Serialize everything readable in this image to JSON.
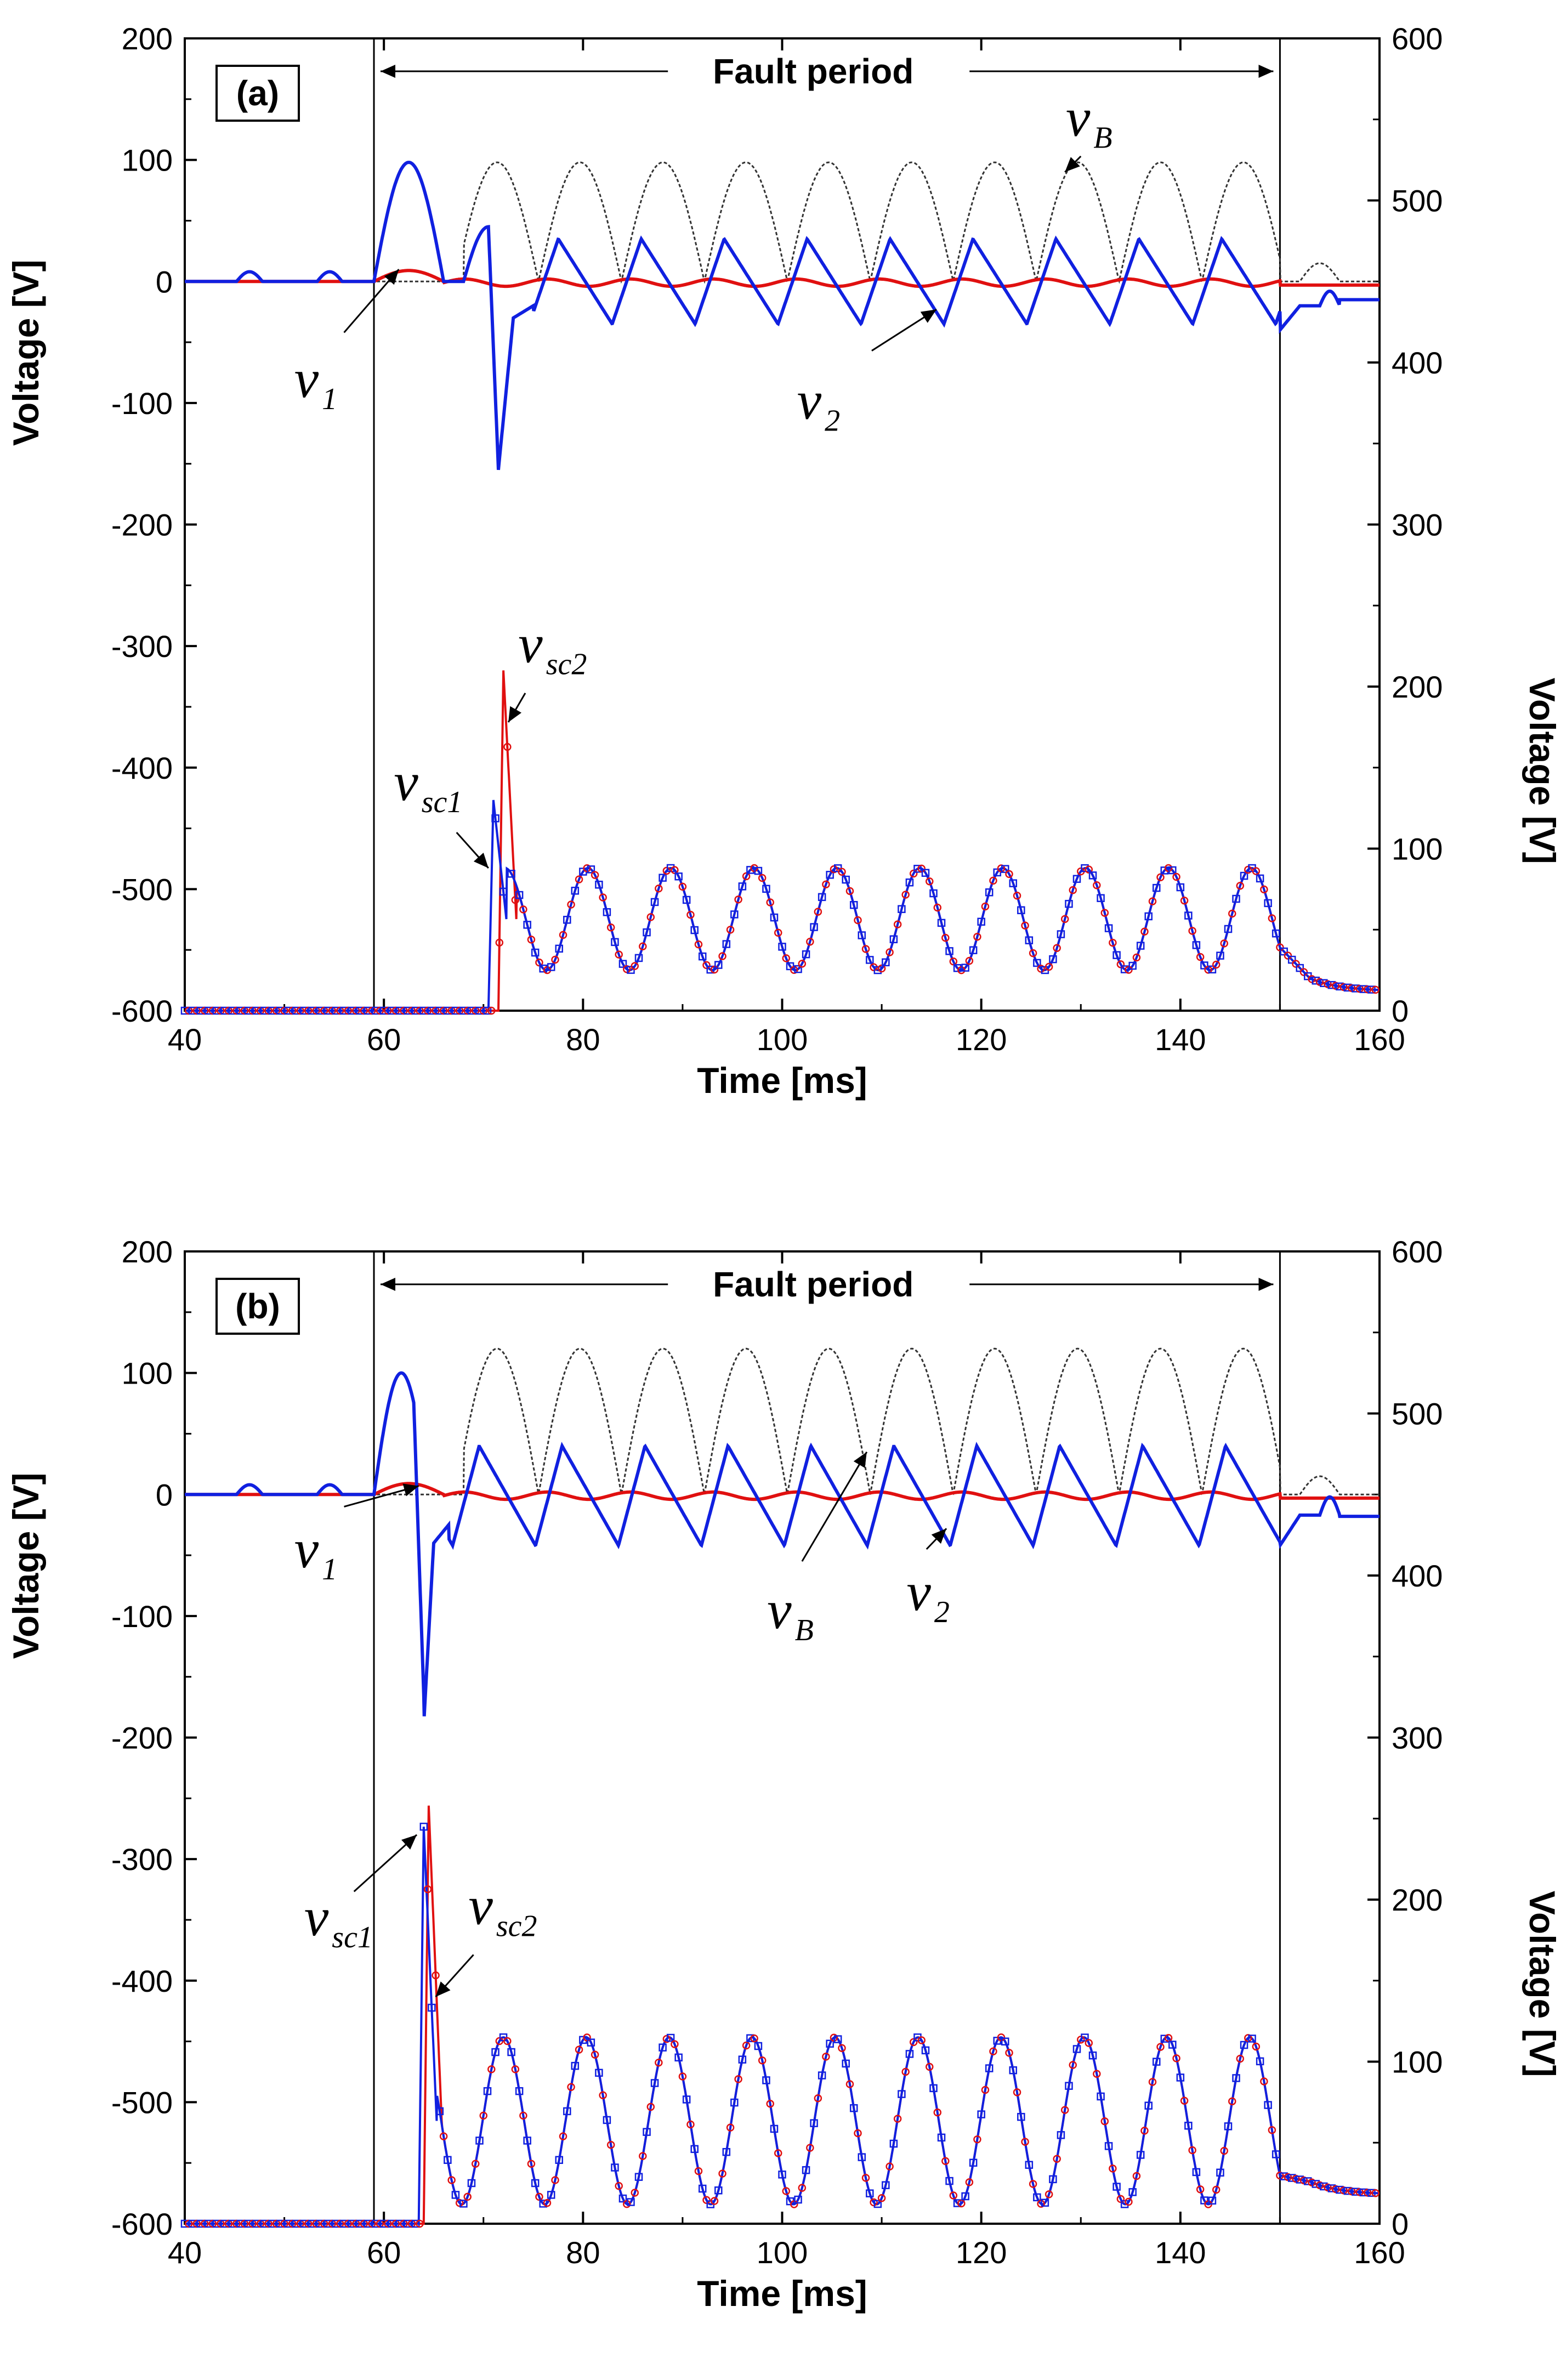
{
  "chart_data": [
    {
      "type": "line",
      "panel": "(a)",
      "xlabel": "Time [ms]",
      "ylabel_left": "Voltage [V]",
      "ylabel_right": "Voltage [V]",
      "xlim": [
        40,
        160
      ],
      "ylim_left": [
        -600,
        200
      ],
      "ylim_right": [
        0,
        600
      ],
      "xticks": [
        "40",
        "60",
        "80",
        "100",
        "120",
        "140",
        "160"
      ],
      "yticks_left": [
        "200",
        "100",
        "0",
        "-100",
        "-200",
        "-300",
        "-400",
        "-500",
        "-600"
      ],
      "yticks_right": [
        "600",
        "500",
        "400",
        "300",
        "200",
        "100",
        "0"
      ],
      "fault_period": {
        "label": "Fault period",
        "start_ms": 59,
        "end_ms": 150
      },
      "series": [
        {
          "name": "vB",
          "axis": "left",
          "color": "#333333",
          "style": "dotted",
          "description": "rectified sinusoid, peaks ~98 V, period ~8.3 ms"
        },
        {
          "name": "v1",
          "axis": "left",
          "color": "#e01010",
          "description": "near zero, small ripple ~±5 V"
        },
        {
          "name": "v2",
          "axis": "left",
          "color": "#1020e0",
          "description": "peak 98 V at 62 ms, dip to -155 V at 71.5 ms, then sawtooth ~+35/-35 V"
        },
        {
          "name": "vsc1",
          "axis": "right",
          "color": "#1020e0",
          "marker": "square",
          "description": "0 V, jumps at 71 ms to 130 V, then oscillates 25–88 V, decays after 150 ms to ~12 V"
        },
        {
          "name": "vsc2",
          "axis": "right",
          "color": "#e01010",
          "marker": "circle",
          "description": "0 V, spike to 210 V at 72 ms, then oscillates 25–88 V"
        }
      ],
      "annotations": [
        {
          "text": "v",
          "sub": "B"
        },
        {
          "text": "v",
          "sub": "1"
        },
        {
          "text": "v",
          "sub": "2"
        },
        {
          "text": "v",
          "sub": "sc1"
        },
        {
          "text": "v",
          "sub": "sc2"
        }
      ]
    },
    {
      "type": "line",
      "panel": "(b)",
      "xlabel": "Time [ms]",
      "ylabel_left": "Voltage [V]",
      "ylabel_right": "Voltage [V]",
      "xlim": [
        40,
        160
      ],
      "ylim_left": [
        -600,
        200
      ],
      "ylim_right": [
        0,
        600
      ],
      "xticks": [
        "40",
        "60",
        "80",
        "100",
        "120",
        "140",
        "160"
      ],
      "yticks_left": [
        "200",
        "100",
        "0",
        "-100",
        "-200",
        "-300",
        "-400",
        "-500",
        "-600"
      ],
      "yticks_right": [
        "600",
        "500",
        "400",
        "300",
        "200",
        "100",
        "0"
      ],
      "fault_period": {
        "label": "Fault period",
        "start_ms": 59,
        "end_ms": 150
      },
      "series": [
        {
          "name": "vB",
          "axis": "left",
          "color": "#333333",
          "style": "dotted",
          "description": "rectified sinusoid, peaks ~120 V, period ~8.3 ms"
        },
        {
          "name": "v1",
          "axis": "left",
          "color": "#e01010",
          "description": "near zero, small ripple ~±5 V"
        },
        {
          "name": "v2",
          "axis": "left",
          "color": "#1020e0",
          "description": "peak 100 V at 61 ms, dip to -190 V at 64 ms, then sawtooth ~+40/-42 V"
        },
        {
          "name": "vsc1",
          "axis": "right",
          "color": "#1020e0",
          "marker": "square",
          "description": "0 V, spike to 245 V at 64 ms, then oscillates 12–115 V, decays after 150 ms to ~18 V"
        },
        {
          "name": "vsc2",
          "axis": "right",
          "color": "#e01010",
          "marker": "circle",
          "description": "0 V, spike to 258 V at 64.5 ms, then oscillates 12–115 V"
        }
      ],
      "annotations": [
        {
          "text": "v",
          "sub": "B"
        },
        {
          "text": "v",
          "sub": "1"
        },
        {
          "text": "v",
          "sub": "2"
        },
        {
          "text": "v",
          "sub": "sc1"
        },
        {
          "text": "v",
          "sub": "sc2"
        }
      ]
    }
  ]
}
